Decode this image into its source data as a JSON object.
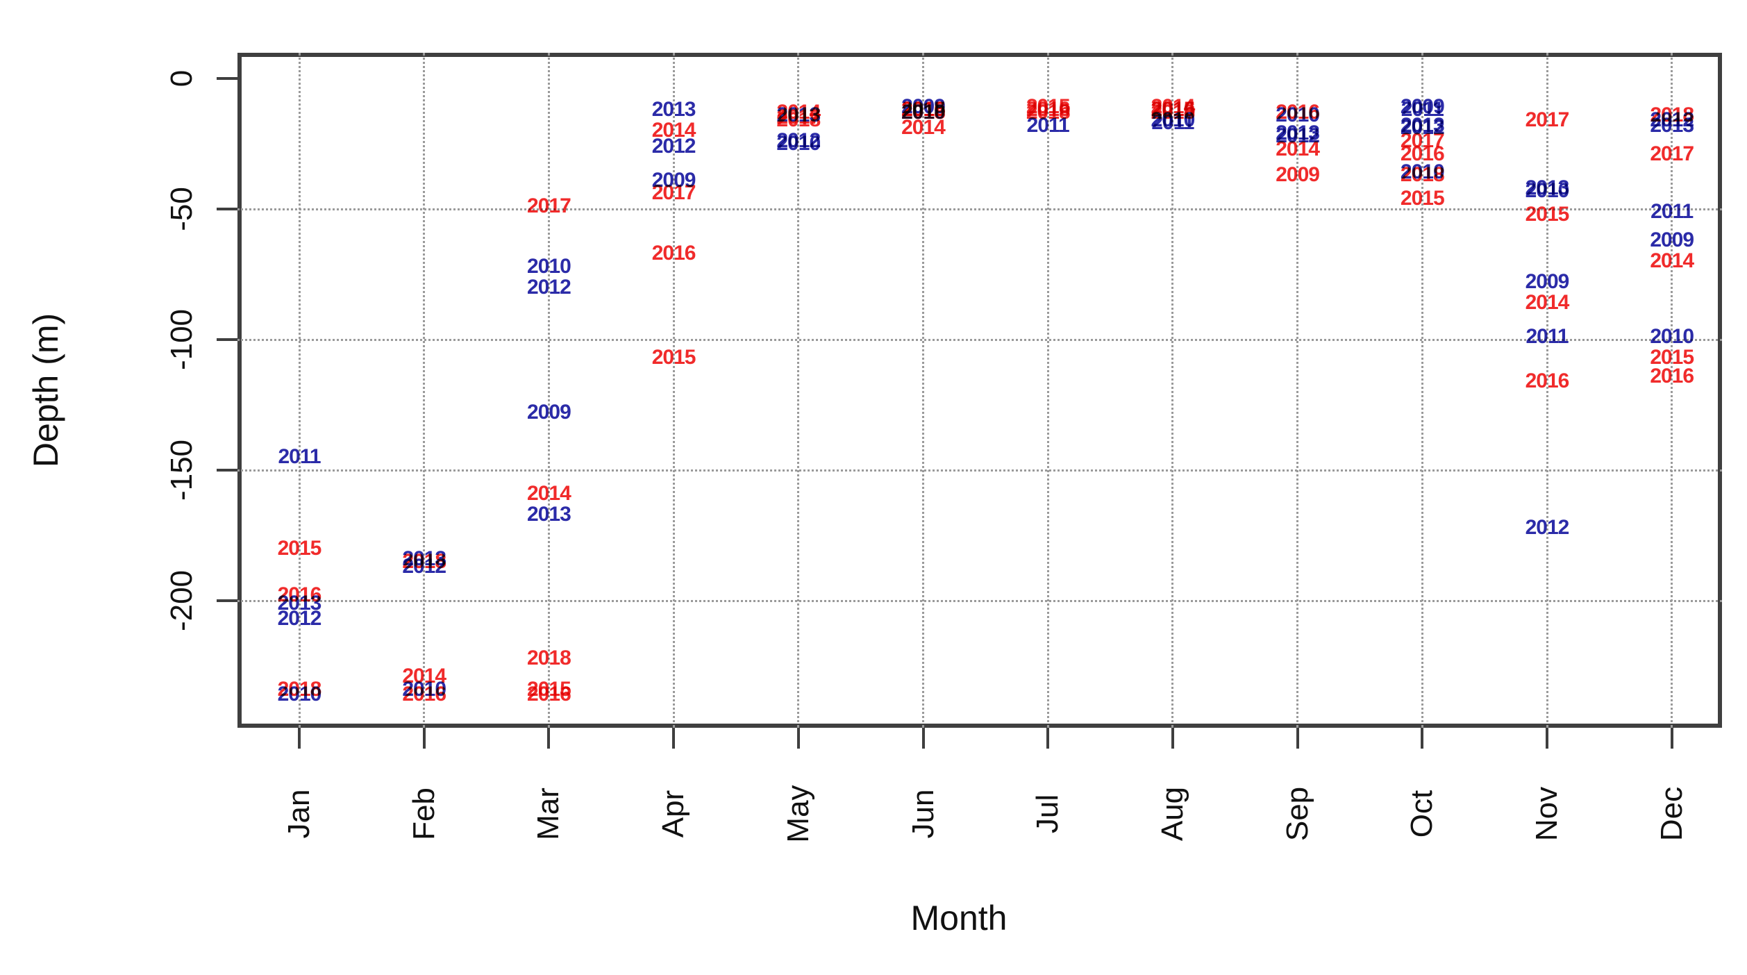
{
  "chart_data": {
    "type": "scatter",
    "title": "",
    "xlabel": "Month",
    "ylabel": "Depth (m)",
    "x_categories": [
      "Jan",
      "Feb",
      "Mar",
      "Apr",
      "May",
      "Jun",
      "Jul",
      "Aug",
      "Sep",
      "Oct",
      "Nov",
      "Dec"
    ],
    "y_ticks": [
      0,
      -50,
      -100,
      -150,
      -200
    ],
    "ylim": [
      -250,
      10
    ],
    "grid": "dotted",
    "legend": "none",
    "point_style": "year text labels",
    "series_colors": {
      "blue": "#2B2BA8",
      "red": "#F02B2B"
    },
    "points": [
      {
        "month": 1,
        "year": "2011",
        "depth": -145,
        "color": "blue"
      },
      {
        "month": 1,
        "year": "2015",
        "depth": -180,
        "color": "red"
      },
      {
        "month": 1,
        "year": "2016",
        "depth": -198,
        "color": "red"
      },
      {
        "month": 1,
        "year": "2013",
        "depth": -201,
        "color": "blue"
      },
      {
        "month": 1,
        "year": "2012",
        "depth": -207,
        "color": "blue"
      },
      {
        "month": 1,
        "year": "2018",
        "depth": -234,
        "color": "red"
      },
      {
        "month": 1,
        "year": "2010",
        "depth": -236,
        "color": "blue"
      },
      {
        "month": 2,
        "year": "2013",
        "depth": -184,
        "color": "blue"
      },
      {
        "month": 2,
        "year": "2018",
        "depth": -185,
        "color": "red"
      },
      {
        "month": 2,
        "year": "2012",
        "depth": -187,
        "color": "blue"
      },
      {
        "month": 2,
        "year": "2014",
        "depth": -229,
        "color": "red"
      },
      {
        "month": 2,
        "year": "2010",
        "depth": -234,
        "color": "blue"
      },
      {
        "month": 2,
        "year": "2016",
        "depth": -236,
        "color": "red"
      },
      {
        "month": 3,
        "year": "2017",
        "depth": -49,
        "color": "red"
      },
      {
        "month": 3,
        "year": "2010",
        "depth": -72,
        "color": "blue"
      },
      {
        "month": 3,
        "year": "2012",
        "depth": -80,
        "color": "blue"
      },
      {
        "month": 3,
        "year": "2009",
        "depth": -128,
        "color": "blue"
      },
      {
        "month": 3,
        "year": "2014",
        "depth": -159,
        "color": "red"
      },
      {
        "month": 3,
        "year": "2013",
        "depth": -167,
        "color": "blue"
      },
      {
        "month": 3,
        "year": "2018",
        "depth": -222,
        "color": "red"
      },
      {
        "month": 3,
        "year": "2015",
        "depth": -234,
        "color": "red"
      },
      {
        "month": 3,
        "year": "2016",
        "depth": -236,
        "color": "red"
      },
      {
        "month": 4,
        "year": "2013",
        "depth": -12,
        "color": "blue"
      },
      {
        "month": 4,
        "year": "2014",
        "depth": -20,
        "color": "red"
      },
      {
        "month": 4,
        "year": "2012",
        "depth": -26,
        "color": "blue"
      },
      {
        "month": 4,
        "year": "2009",
        "depth": -39,
        "color": "blue"
      },
      {
        "month": 4,
        "year": "2017",
        "depth": -44,
        "color": "red"
      },
      {
        "month": 4,
        "year": "2016",
        "depth": -67,
        "color": "red"
      },
      {
        "month": 4,
        "year": "2015",
        "depth": -107,
        "color": "red"
      },
      {
        "month": 5,
        "year": "2014",
        "depth": -13,
        "color": "red"
      },
      {
        "month": 5,
        "year": "2013",
        "depth": -14,
        "color": "blue"
      },
      {
        "month": 5,
        "year": "2017",
        "depth": -15,
        "color": "red"
      },
      {
        "month": 5,
        "year": "2018",
        "depth": -16,
        "color": "red"
      },
      {
        "month": 5,
        "year": "2012",
        "depth": -24,
        "color": "blue"
      },
      {
        "month": 5,
        "year": "2010",
        "depth": -25,
        "color": "blue"
      },
      {
        "month": 6,
        "year": "2009",
        "depth": -11,
        "color": "blue"
      },
      {
        "month": 6,
        "year": "2015",
        "depth": -12,
        "color": "red"
      },
      {
        "month": 6,
        "year": "2016",
        "depth": -12,
        "color": "red"
      },
      {
        "month": 6,
        "year": "2010",
        "depth": -13,
        "color": "blue"
      },
      {
        "month": 6,
        "year": "2018",
        "depth": -13,
        "color": "red"
      },
      {
        "month": 6,
        "year": "2014",
        "depth": -19,
        "color": "red"
      },
      {
        "month": 7,
        "year": "2015",
        "depth": -11,
        "color": "red"
      },
      {
        "month": 7,
        "year": "2016",
        "depth": -12,
        "color": "red"
      },
      {
        "month": 7,
        "year": "2018",
        "depth": -13,
        "color": "red"
      },
      {
        "month": 7,
        "year": "2011",
        "depth": -18,
        "color": "blue"
      },
      {
        "month": 8,
        "year": "2014",
        "depth": -11,
        "color": "red"
      },
      {
        "month": 8,
        "year": "2015",
        "depth": -12,
        "color": "red"
      },
      {
        "month": 8,
        "year": "2016",
        "depth": -12,
        "color": "red"
      },
      {
        "month": 8,
        "year": "2018",
        "depth": -13,
        "color": "red"
      },
      {
        "month": 8,
        "year": "2010",
        "depth": -16,
        "color": "blue"
      },
      {
        "month": 8,
        "year": "2011",
        "depth": -17,
        "color": "blue"
      },
      {
        "month": 9,
        "year": "2016",
        "depth": -13,
        "color": "red"
      },
      {
        "month": 9,
        "year": "2010",
        "depth": -14,
        "color": "blue"
      },
      {
        "month": 9,
        "year": "2013",
        "depth": -21,
        "color": "blue"
      },
      {
        "month": 9,
        "year": "2012",
        "depth": -22,
        "color": "blue"
      },
      {
        "month": 9,
        "year": "2014",
        "depth": -27,
        "color": "red"
      },
      {
        "month": 9,
        "year": "2009",
        "depth": -37,
        "color": "red"
      },
      {
        "month": 10,
        "year": "2009",
        "depth": -11,
        "color": "blue"
      },
      {
        "month": 10,
        "year": "2011",
        "depth": -12,
        "color": "blue"
      },
      {
        "month": 10,
        "year": "2013",
        "depth": -18,
        "color": "blue"
      },
      {
        "month": 10,
        "year": "2012",
        "depth": -19,
        "color": "blue"
      },
      {
        "month": 10,
        "year": "2017",
        "depth": -24,
        "color": "red"
      },
      {
        "month": 10,
        "year": "2016",
        "depth": -29,
        "color": "red"
      },
      {
        "month": 10,
        "year": "2010",
        "depth": -36,
        "color": "blue"
      },
      {
        "month": 10,
        "year": "2018",
        "depth": -37,
        "color": "red"
      },
      {
        "month": 10,
        "year": "2015",
        "depth": -46,
        "color": "red"
      },
      {
        "month": 11,
        "year": "2017",
        "depth": -16,
        "color": "red"
      },
      {
        "month": 11,
        "year": "2013",
        "depth": -42,
        "color": "blue"
      },
      {
        "month": 11,
        "year": "2010",
        "depth": -43,
        "color": "blue"
      },
      {
        "month": 11,
        "year": "2015",
        "depth": -52,
        "color": "red"
      },
      {
        "month": 11,
        "year": "2009",
        "depth": -78,
        "color": "blue"
      },
      {
        "month": 11,
        "year": "2014",
        "depth": -86,
        "color": "red"
      },
      {
        "month": 11,
        "year": "2011",
        "depth": -99,
        "color": "blue"
      },
      {
        "month": 11,
        "year": "2016",
        "depth": -116,
        "color": "red"
      },
      {
        "month": 11,
        "year": "2012",
        "depth": -172,
        "color": "blue"
      },
      {
        "month": 12,
        "year": "2018",
        "depth": -14,
        "color": "red"
      },
      {
        "month": 12,
        "year": "2012",
        "depth": -16,
        "color": "blue"
      },
      {
        "month": 12,
        "year": "2013",
        "depth": -18,
        "color": "blue"
      },
      {
        "month": 12,
        "year": "2017",
        "depth": -29,
        "color": "red"
      },
      {
        "month": 12,
        "year": "2011",
        "depth": -51,
        "color": "blue"
      },
      {
        "month": 12,
        "year": "2009",
        "depth": -62,
        "color": "blue"
      },
      {
        "month": 12,
        "year": "2014",
        "depth": -70,
        "color": "red"
      },
      {
        "month": 12,
        "year": "2010",
        "depth": -99,
        "color": "blue"
      },
      {
        "month": 12,
        "year": "2015",
        "depth": -107,
        "color": "red"
      },
      {
        "month": 12,
        "year": "2016",
        "depth": -114,
        "color": "red"
      }
    ]
  }
}
